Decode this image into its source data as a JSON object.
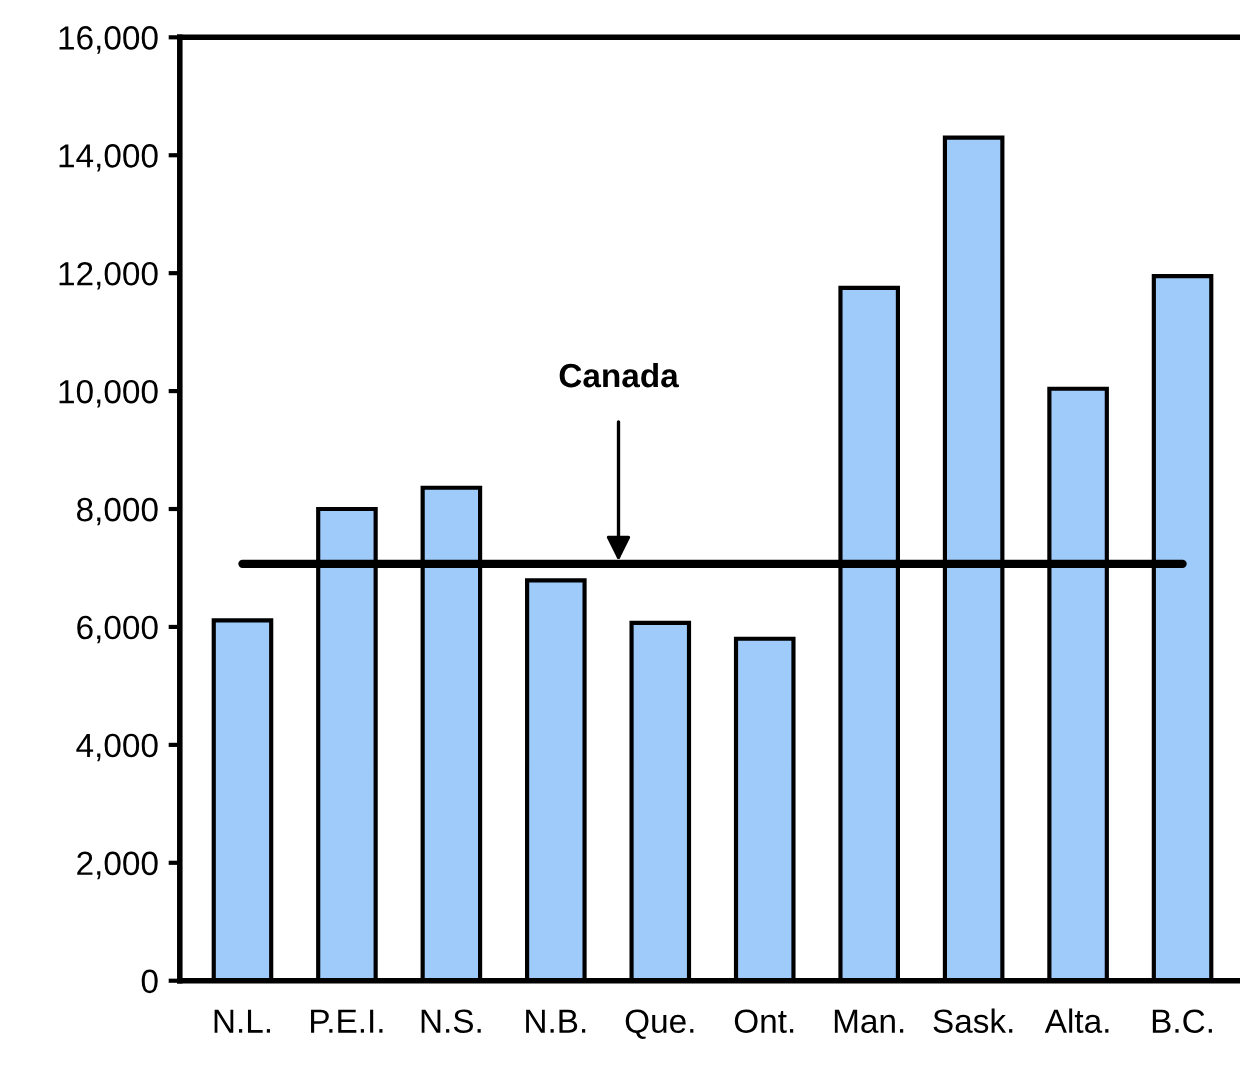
{
  "chart_data": {
    "type": "bar",
    "categories": [
      "N.L.",
      "P.E.I.",
      "N.S.",
      "N.B.",
      "Que.",
      "Ont.",
      "Man.",
      "Sask.",
      "Alta.",
      "B.C."
    ],
    "values": [
      6110,
      8000,
      8360,
      6790,
      6070,
      5800,
      11750,
      14300,
      10040,
      11950
    ],
    "color": "#9fcbfa",
    "ylim": [
      0,
      16000
    ],
    "yticks": [
      {
        "value": 0,
        "label": "0"
      },
      {
        "value": 2000,
        "label": "2,000"
      },
      {
        "value": 4000,
        "label": "4,000"
      },
      {
        "value": 6000,
        "label": "6,000"
      },
      {
        "value": 8000,
        "label": "8,000"
      },
      {
        "value": 10000,
        "label": "10,000"
      },
      {
        "value": 12000,
        "label": "12,000"
      },
      {
        "value": 14000,
        "label": "14,000"
      },
      {
        "value": 16000,
        "label": "16,000"
      }
    ],
    "ref_lines": [
      {
        "axis": "y",
        "value": 7070,
        "label": "Canada",
        "color": "#000000"
      }
    ],
    "grid": false,
    "legend": false
  }
}
